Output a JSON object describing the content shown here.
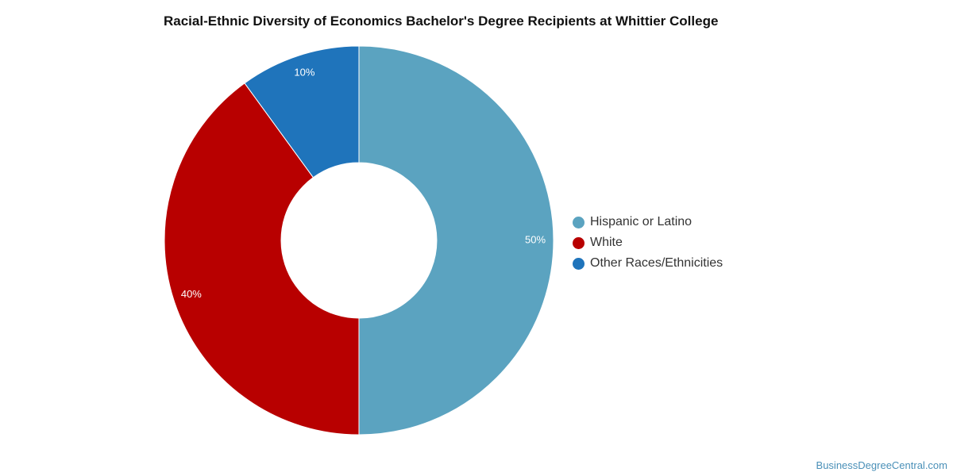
{
  "chart_data": {
    "type": "pie",
    "title": "Racial-Ethnic Diversity of Economics Bachelor's Degree Recipients at Whittier College",
    "categories": [
      "Hispanic or Latino",
      "White",
      "Other Races/Ethnicities"
    ],
    "values": [
      50,
      40,
      10
    ],
    "value_labels": [
      "50%",
      "40%",
      "10%"
    ],
    "colors": [
      "#5ba3c0",
      "#b80000",
      "#1f74bb"
    ],
    "donut": true,
    "legend_position": "right"
  },
  "footer": {
    "source": "BusinessDegreeCentral.com"
  }
}
